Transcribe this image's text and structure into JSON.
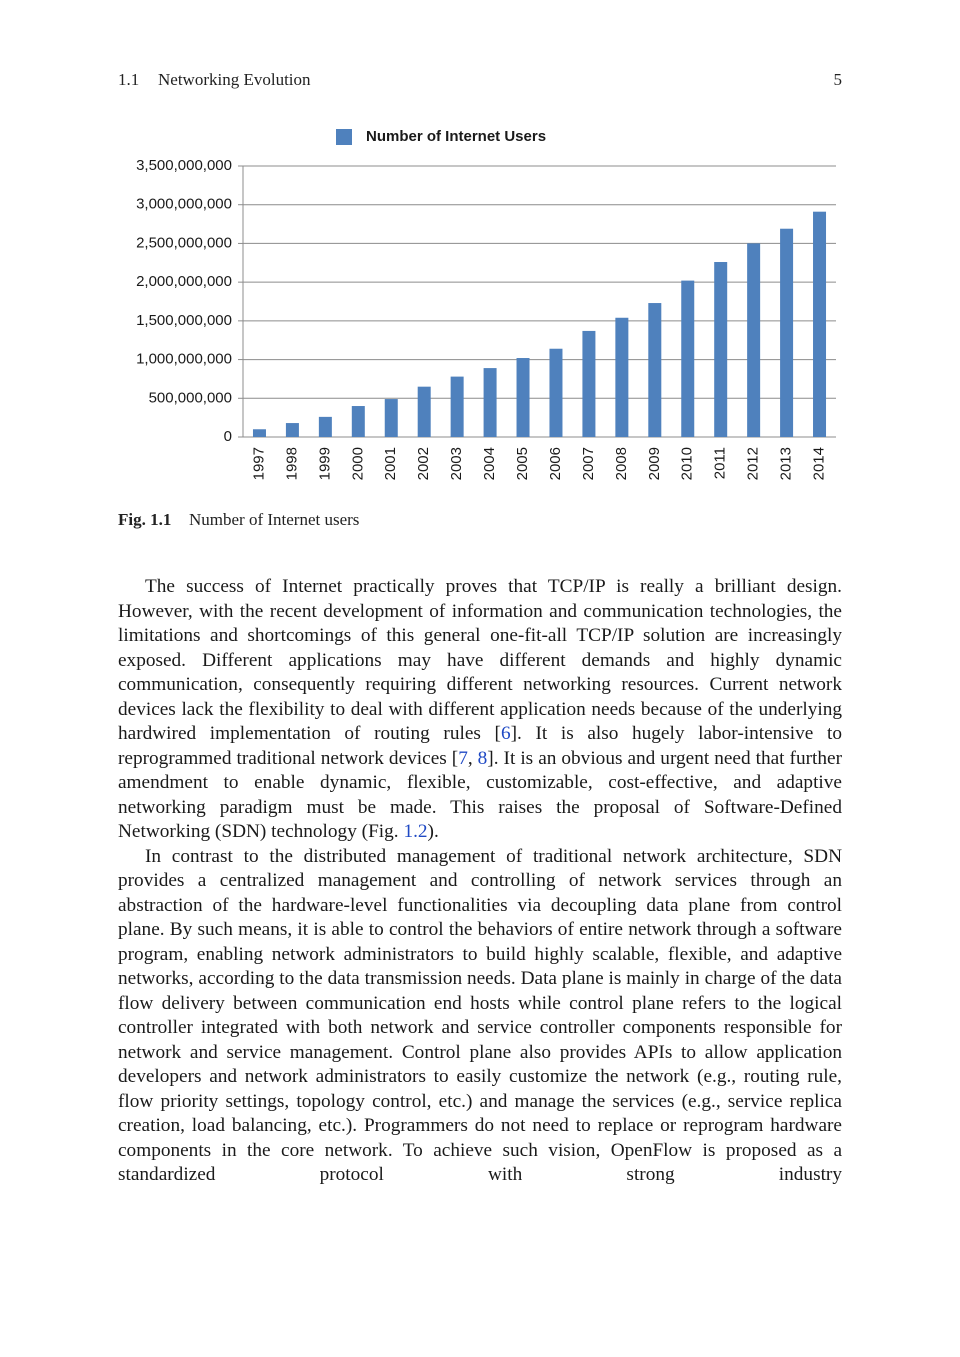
{
  "header": {
    "section": "1.1",
    "title": "Networking Evolution",
    "page": "5"
  },
  "chart_data": {
    "type": "bar",
    "categories": [
      "1997",
      "1998",
      "1999",
      "2000",
      "2001",
      "2002",
      "2003",
      "2004",
      "2005",
      "2006",
      "2007",
      "2008",
      "2009",
      "2010",
      "2011",
      "2012",
      "2013",
      "2014"
    ],
    "series": [
      {
        "name": "Number of Internet Users",
        "color": "#4f81bd",
        "values": [
          100000000,
          180000000,
          260000000,
          400000000,
          490000000,
          650000000,
          780000000,
          890000000,
          1020000000,
          1140000000,
          1370000000,
          1540000000,
          1730000000,
          2020000000,
          2260000000,
          2500000000,
          2690000000,
          2910000000
        ]
      }
    ],
    "ylim": [
      0,
      3500000000
    ],
    "yticks": [
      0,
      {
        "value": 500000000,
        "label": "500,000,000"
      },
      {
        "value": 1000000000,
        "label": "1,000,000,000"
      },
      {
        "value": 1500000000,
        "label": "1,500,000,000"
      },
      {
        "value": 2000000000,
        "label": "2,000,000,000"
      },
      {
        "value": 2500000000,
        "label": "2,500,000,000"
      },
      {
        "value": 3000000000,
        "label": "3,000,000,000"
      },
      {
        "value": 3500000000,
        "label": "3,500,000,000"
      }
    ],
    "grid": true,
    "legend": "top"
  },
  "caption": {
    "label": "Fig. 1.1",
    "text": "Number of Internet users"
  },
  "body": {
    "paragraphs": [
      [
        "The success of Internet practically proves that TCP/IP is really a brilliant design. However, with the recent development of information and communication technologies, the limitations and shortcomings of this general one-fit-all TCP/IP solution are increasingly exposed. Different applications may have different demands and highly dynamic communication, consequently requiring different networking resources. Current network devices lack the flexibility to deal with different application needs because of the underlying hardwired implementation of routing rules [",
        {
          "text": "6",
          "link": true
        },
        "]. It is also hugely labor-intensive to reprogrammed traditional network devices [",
        {
          "text": "7",
          "link": true
        },
        ", ",
        {
          "text": "8",
          "link": true
        },
        "]. It is an obvious and urgent need that further amendment to enable dynamic, flexible, customizable, cost-effective, and adaptive networking paradigm must be made. This raises the proposal of Software-Defined Networking (SDN) technology (Fig. ",
        {
          "text": "1.2",
          "link": true
        },
        ")."
      ],
      [
        "In contrast to the distributed management of traditional network architecture, SDN provides a centralized management and controlling of network services through an abstraction of the hardware-level functionalities via decoupling data plane from control plane. By such means, it is able to control the behaviors of entire network through a software program, enabling network administrators to build highly scalable, flexible, and adaptive networks, according to the data transmission needs. Data plane is mainly in charge of the data flow delivery between communication end hosts while control plane refers to the logical controller integrated with both network and service controller components responsible for network and service management. Control plane also provides APIs to allow application developers and network administrators to easily customize the network (e.g., routing rule, flow priority settings, topology control, etc.) and manage the services (e.g., service replica creation, load balancing, etc.). Programmers do not need to replace or reprogram hardware components in the core network. To achieve such vision, OpenFlow is proposed as a standardized protocol with strong industry"
      ]
    ]
  }
}
